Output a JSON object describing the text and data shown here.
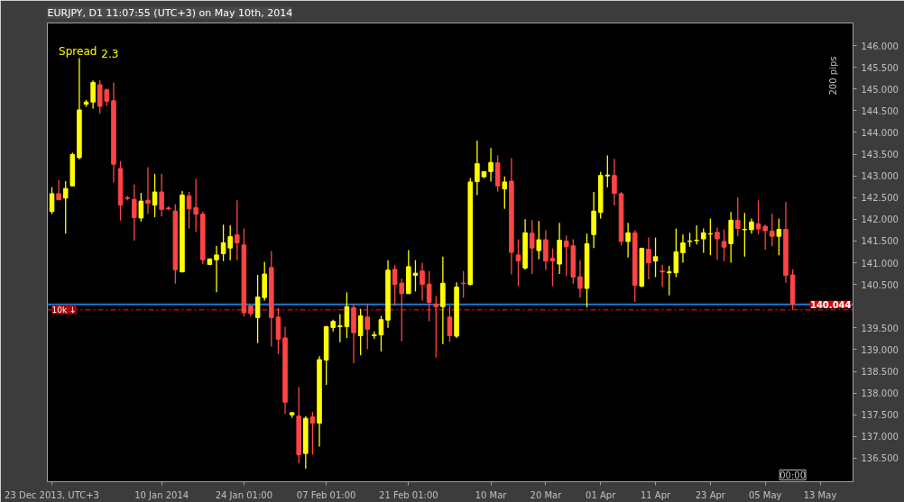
{
  "chart_data": {
    "type": "candlestick",
    "title": "EURJPY, D1 11:07:55 (UTC+3) on May 10th, 2014",
    "categories": [
      "23 Dec 2013, UTC+3",
      null,
      null,
      null,
      null,
      null,
      null,
      null,
      null,
      null,
      null,
      null,
      null,
      null,
      null,
      null,
      "10 Jan 2014",
      null,
      null,
      null,
      null,
      null,
      null,
      null,
      null,
      null,
      null,
      null,
      "24 Jan 01:00",
      null,
      null,
      null,
      null,
      null,
      null,
      null,
      null,
      null,
      null,
      null,
      "07 Feb 01:00",
      null,
      null,
      null,
      null,
      null,
      null,
      null,
      null,
      null,
      null,
      null,
      "21 Feb 01:00",
      null,
      null,
      null,
      null,
      null,
      null,
      null,
      null,
      null,
      null,
      null,
      "10 Mar",
      null,
      null,
      null,
      null,
      null,
      null,
      null,
      "20 Mar",
      null,
      null,
      null,
      null,
      null,
      null,
      null,
      "01 Apr",
      null,
      null,
      null,
      null,
      null,
      null,
      null,
      "11 Apr",
      null,
      null,
      null,
      null,
      null,
      null,
      null,
      "23 Apr",
      null,
      null,
      null,
      null,
      null,
      null,
      null,
      "05 May",
      null,
      null,
      null,
      null,
      null,
      null,
      null,
      "13 May"
    ],
    "ohlc": [
      [
        142.18,
        142.74,
        142.12,
        142.59
      ],
      [
        142.59,
        142.9,
        142.45,
        142.45
      ],
      [
        142.49,
        142.88,
        141.67,
        142.71
      ],
      [
        142.77,
        143.53,
        142.77,
        143.49
      ],
      [
        143.42,
        145.71,
        143.38,
        144.52
      ],
      [
        144.65,
        144.75,
        144.59,
        144.7
      ],
      [
        144.7,
        145.2,
        144.55,
        145.15
      ],
      [
        145.1,
        145.2,
        144.43,
        144.6
      ],
      [
        144.98,
        145.01,
        144.61,
        144.72
      ],
      [
        144.73,
        145.15,
        142.85,
        143.27
      ],
      [
        143.17,
        143.34,
        141.97,
        142.33
      ],
      [
        142.5,
        142.54,
        142.44,
        142.48
      ],
      [
        142.46,
        142.8,
        141.51,
        142.04
      ],
      [
        142.03,
        142.61,
        141.95,
        142.42
      ],
      [
        142.44,
        143.2,
        142.13,
        142.37
      ],
      [
        142.33,
        143.05,
        142.05,
        142.63
      ],
      [
        142.63,
        143.05,
        142.07,
        142.23
      ],
      [
        142.26,
        142.3,
        142.21,
        142.24
      ],
      [
        142.19,
        142.35,
        140.52,
        140.84
      ],
      [
        140.79,
        142.65,
        140.78,
        142.56
      ],
      [
        142.54,
        142.63,
        141.79,
        142.24
      ],
      [
        142.27,
        142.93,
        141.71,
        142.12
      ],
      [
        142.12,
        142.18,
        140.97,
        141.07
      ],
      [
        140.96,
        141.09,
        140.96,
        141.09
      ],
      [
        141.07,
        141.39,
        140.32,
        141.18
      ],
      [
        141.21,
        141.88,
        141.04,
        141.46
      ],
      [
        141.34,
        141.86,
        141.06,
        141.6
      ],
      [
        141.64,
        142.44,
        141.06,
        141.46
      ],
      [
        141.41,
        141.79,
        139.76,
        139.85
      ],
      [
        140.01,
        140.01,
        139.76,
        139.83
      ],
      [
        139.74,
        140.72,
        139.15,
        140.21
      ],
      [
        140.2,
        141.02,
        140.13,
        140.74
      ],
      [
        140.89,
        141.27,
        139.07,
        139.74
      ],
      [
        139.75,
        139.96,
        138.9,
        139.24
      ],
      [
        139.27,
        139.53,
        137.52,
        137.79
      ],
      [
        137.5,
        137.55,
        137.43,
        137.55
      ],
      [
        137.47,
        138.14,
        136.38,
        136.58
      ],
      [
        136.61,
        137.47,
        136.26,
        137.42
      ],
      [
        137.45,
        137.57,
        136.58,
        137.31
      ],
      [
        137.31,
        138.85,
        136.77,
        138.77
      ],
      [
        138.76,
        139.55,
        138.19,
        139.53
      ],
      [
        139.51,
        139.69,
        139.42,
        139.65
      ],
      [
        139.53,
        139.82,
        139.17,
        139.55
      ],
      [
        139.53,
        140.32,
        139.27,
        139.99
      ],
      [
        139.97,
        140.06,
        138.69,
        139.39
      ],
      [
        139.32,
        139.94,
        138.87,
        139.78
      ],
      [
        139.75,
        140.06,
        139.01,
        139.47
      ],
      [
        139.32,
        139.42,
        139.25,
        139.34
      ],
      [
        139.34,
        139.78,
        138.96,
        139.69
      ],
      [
        139.68,
        141.06,
        139.5,
        140.83
      ],
      [
        140.85,
        140.95,
        140.01,
        140.5
      ],
      [
        140.53,
        140.64,
        139.19,
        140.29
      ],
      [
        140.29,
        141.29,
        140.29,
        140.91
      ],
      [
        140.71,
        141.06,
        140.34,
        140.76
      ],
      [
        140.81,
        141.0,
        140.13,
        140.5
      ],
      [
        140.51,
        140.81,
        139.66,
        140.09
      ],
      [
        140.04,
        140.24,
        138.82,
        139.99
      ],
      [
        139.99,
        141.14,
        139.13,
        140.53
      ],
      [
        139.75,
        140.01,
        139.18,
        139.32
      ],
      [
        139.31,
        140.55,
        139.27,
        140.44
      ],
      [
        140.53,
        140.81,
        140.2,
        140.52
      ],
      [
        140.5,
        142.95,
        140.48,
        142.86
      ],
      [
        142.87,
        143.81,
        142.56,
        143.28
      ],
      [
        142.98,
        143.1,
        142.95,
        143.1
      ],
      [
        143.1,
        143.64,
        142.87,
        143.31
      ],
      [
        143.3,
        143.47,
        142.64,
        142.77
      ],
      [
        142.7,
        142.99,
        142.24,
        142.86
      ],
      [
        142.88,
        143.41,
        140.73,
        141.24
      ],
      [
        141.18,
        141.54,
        140.46,
        141.04
      ],
      [
        140.88,
        142.0,
        140.84,
        141.69
      ],
      [
        141.68,
        141.98,
        140.74,
        141.34
      ],
      [
        141.28,
        141.96,
        141.08,
        141.53
      ],
      [
        141.53,
        141.75,
        140.83,
        141.04
      ],
      [
        141.1,
        141.33,
        140.46,
        141.04
      ],
      [
        140.97,
        141.92,
        140.74,
        141.52
      ],
      [
        141.5,
        141.63,
        140.7,
        141.37
      ],
      [
        141.39,
        141.54,
        140.52,
        140.67
      ],
      [
        140.68,
        141.06,
        140.2,
        140.41
      ],
      [
        140.41,
        141.67,
        139.97,
        141.44
      ],
      [
        141.65,
        142.63,
        141.34,
        142.19
      ],
      [
        142.16,
        143.09,
        142.02,
        143.01
      ],
      [
        143.0,
        143.47,
        142.74,
        143.02
      ],
      [
        143.01,
        143.39,
        142.32,
        142.6
      ],
      [
        142.59,
        142.63,
        141.4,
        141.49
      ],
      [
        141.49,
        141.92,
        141.12,
        141.69
      ],
      [
        141.69,
        141.75,
        140.1,
        140.48
      ],
      [
        140.46,
        141.35,
        140.44,
        141.33
      ],
      [
        141.31,
        141.58,
        140.62,
        141.0
      ],
      [
        141.04,
        141.58,
        140.67,
        141.14
      ],
      [
        140.81,
        140.95,
        140.44,
        140.79
      ],
      [
        140.77,
        140.93,
        140.25,
        140.79
      ],
      [
        140.77,
        141.79,
        140.67,
        141.25
      ],
      [
        141.23,
        141.65,
        141.0,
        141.46
      ],
      [
        141.49,
        141.69,
        141.37,
        141.5
      ],
      [
        141.51,
        141.86,
        141.42,
        141.52
      ],
      [
        141.55,
        141.79,
        141.23,
        141.69
      ],
      [
        141.66,
        142.02,
        141.18,
        141.67
      ],
      [
        141.7,
        141.81,
        141.07,
        141.55
      ],
      [
        141.49,
        141.77,
        141.04,
        141.36
      ],
      [
        141.44,
        142.17,
        141.0,
        141.98
      ],
      [
        141.98,
        142.51,
        141.61,
        141.79
      ],
      [
        141.76,
        142.15,
        141.14,
        141.77
      ],
      [
        141.76,
        142.02,
        141.67,
        141.94
      ],
      [
        141.9,
        142.44,
        141.65,
        141.78
      ],
      [
        141.84,
        141.88,
        141.3,
        141.74
      ],
      [
        141.73,
        142.13,
        141.38,
        141.61
      ],
      [
        141.61,
        142.02,
        141.17,
        141.77
      ],
      [
        141.77,
        142.4,
        140.54,
        140.71
      ],
      [
        140.72,
        140.85,
        139.92,
        140.044
      ],
      null,
      null,
      null,
      null
    ],
    "colors": [
      "#ffff00",
      "#ff4444",
      "#ffff00",
      "#ffff00",
      "#ffff00",
      "#ffff00",
      "#ffff00",
      "#ff4444",
      "#ff4444",
      "#ff4444",
      "#ff4444",
      "#ff4444",
      "#ff4444",
      "#ffff00",
      "#ff4444",
      "#ffff00",
      "#ff4444",
      "#ff4444",
      "#ff4444",
      "#ffff00",
      "#ff4444",
      "#ff4444",
      "#ff4444",
      "#ffff00",
      "#ffff00",
      "#ffff00",
      "#ffff00",
      "#ff4444",
      "#ff4444",
      "#ff4444",
      "#ffff00",
      "#ffff00",
      "#ff4444",
      "#ff4444",
      "#ff4444",
      "#ffff00",
      "#ff4444",
      "#ffff00",
      "#ff4444",
      "#ffff00",
      "#ffff00",
      "#ffff00",
      "#ffff00",
      "#ffff00",
      "#ff4444",
      "#ffff00",
      "#ff4444",
      "#ffff00",
      "#ffff00",
      "#ffff00",
      "#ff4444",
      "#ff4444",
      "#ffff00",
      "#ffff00",
      "#ff4444",
      "#ff4444",
      "#ff4444",
      "#ffff00",
      "#ff4444",
      "#ffff00",
      "#ff4444",
      "#ffff00",
      "#ffff00",
      "#ffff00",
      "#ffff00",
      "#ff4444",
      "#ffff00",
      "#ff4444",
      "#ff4444",
      "#ffff00",
      "#ff4444",
      "#ffff00",
      "#ff4444",
      "#ff4444",
      "#ffff00",
      "#ff4444",
      "#ff4444",
      "#ff4444",
      "#ffff00",
      "#ffff00",
      "#ffff00",
      "#ffff00",
      "#ff4444",
      "#ff4444",
      "#ffff00",
      "#ff4444",
      "#ffff00",
      "#ff4444",
      "#ffff00",
      "#ff4444",
      "#ffff00",
      "#ffff00",
      "#ffff00",
      "#ffff00",
      "#ffff00",
      "#ffff00",
      "#ffff00",
      "#ff4444",
      "#ff4444",
      "#ffff00",
      "#ff4444",
      "#ffff00",
      "#ffff00",
      "#ff4444",
      "#ff4444",
      "#ff4444",
      "#ffff00",
      "#ff4444",
      "#ff4444",
      null,
      null,
      null,
      null
    ],
    "ylim": [
      135.96,
      146.52
    ],
    "yticks": [
      {
        "value": 136.5,
        "label": "136.500"
      },
      {
        "value": 137,
        "label": "137.000"
      },
      {
        "value": 137.5,
        "label": "137.500"
      },
      {
        "value": 138,
        "label": "138.000"
      },
      {
        "value": 138.5,
        "label": "138.500"
      },
      {
        "value": 139,
        "label": "139.000"
      },
      {
        "value": 139.5,
        "label": "139.500"
      },
      {
        "value": 140.5,
        "label": "140.500"
      },
      {
        "value": 141,
        "label": "141.000"
      },
      {
        "value": 141.5,
        "label": "141.500"
      },
      {
        "value": 142,
        "label": "142.000"
      },
      {
        "value": 142.5,
        "label": "142.500"
      },
      {
        "value": 143,
        "label": "143.000"
      },
      {
        "value": 143.5,
        "label": "143.500"
      },
      {
        "value": 144,
        "label": "144.000"
      },
      {
        "value": 144.5,
        "label": "144.500"
      },
      {
        "value": 145,
        "label": "145.000"
      },
      {
        "value": 145.5,
        "label": "145.500"
      },
      {
        "value": 146,
        "label": "146.000"
      }
    ],
    "ref_lines": [
      {
        "axis": "y",
        "value": 140.044,
        "label": "140.044",
        "color": "#1f78d1"
      },
      {
        "axis": "y",
        "value": 139.92,
        "label": "10k ↓",
        "color": "#cc0000",
        "line_style": "dashed"
      }
    ],
    "annotations": [
      "Spread",
      "2.3",
      "200 pips",
      "00:00"
    ]
  }
}
